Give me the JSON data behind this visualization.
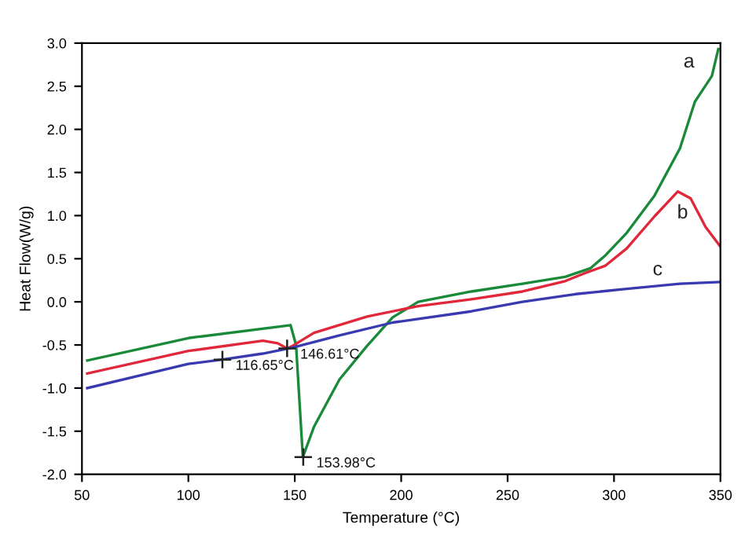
{
  "chart_data": {
    "type": "line",
    "xlabel": "Temperature (°C)",
    "ylabel": "Heat Flow(W/g)",
    "xlim": [
      50,
      350
    ],
    "ylim": [
      -2.0,
      3.0
    ],
    "xticks": [
      50,
      100,
      150,
      200,
      250,
      300,
      350
    ],
    "yticks": [
      {
        "value": -2.0,
        "label": "-2.0"
      },
      {
        "value": -1.5,
        "label": "-1.5"
      },
      {
        "value": -1.0,
        "label": "-1.0"
      },
      {
        "value": -0.5,
        "label": "-0.5"
      },
      {
        "value": 0.0,
        "label": "0.0"
      },
      {
        "value": 0.5,
        "label": "0.5"
      },
      {
        "value": 1.0,
        "label": "1.0"
      },
      {
        "value": 1.5,
        "label": "1.5"
      },
      {
        "value": 2.0,
        "label": "2.0"
      },
      {
        "value": 2.5,
        "label": "2.5"
      },
      {
        "value": 3.0,
        "label": "3.0"
      }
    ],
    "grid": false,
    "legend": false,
    "marker": "none",
    "line_style": "solid",
    "series": [
      {
        "name": "a",
        "color": "#1a8a3a",
        "x": [
          52.5,
          100,
          148,
          150.6,
          153.8,
          159,
          171,
          184,
          196,
          208,
          233,
          257,
          277,
          289,
          296,
          306,
          319,
          331,
          338,
          342,
          346,
          349
        ],
        "values": [
          -0.68,
          -0.42,
          -0.27,
          -0.5,
          -1.8,
          -1.45,
          -0.9,
          -0.51,
          -0.18,
          0.0,
          0.12,
          0.21,
          0.29,
          0.39,
          0.54,
          0.8,
          1.23,
          1.78,
          2.32,
          2.47,
          2.62,
          2.93
        ]
      },
      {
        "name": "b",
        "color": "#e0283a",
        "x": [
          52.5,
          100,
          135,
          142,
          146.4,
          149,
          159,
          184,
          208,
          233,
          257,
          277,
          286,
          296,
          306,
          319,
          330,
          336,
          343,
          350
        ],
        "values": [
          -0.83,
          -0.57,
          -0.45,
          -0.48,
          -0.54,
          -0.51,
          -0.36,
          -0.17,
          -0.05,
          0.03,
          0.12,
          0.24,
          0.33,
          0.42,
          0.62,
          0.99,
          1.28,
          1.2,
          0.87,
          0.64
        ]
      },
      {
        "name": "c",
        "color": "#3a3ab0",
        "x": [
          52.5,
          100,
          116,
          135,
          149,
          171,
          196,
          233,
          257,
          282,
          306,
          331,
          350
        ],
        "values": [
          -1.0,
          -0.72,
          -0.67,
          -0.6,
          -0.53,
          -0.39,
          -0.24,
          -0.11,
          0.0,
          0.09,
          0.15,
          0.21,
          0.23
        ]
      }
    ],
    "annotations": [
      {
        "text": "116.65°C",
        "x": 116,
        "y": -0.67
      },
      {
        "text": "146.61°C",
        "x": 146.4,
        "y": -0.54
      },
      {
        "text": "153.98°C",
        "x": 153.98,
        "y": -1.8
      }
    ]
  }
}
